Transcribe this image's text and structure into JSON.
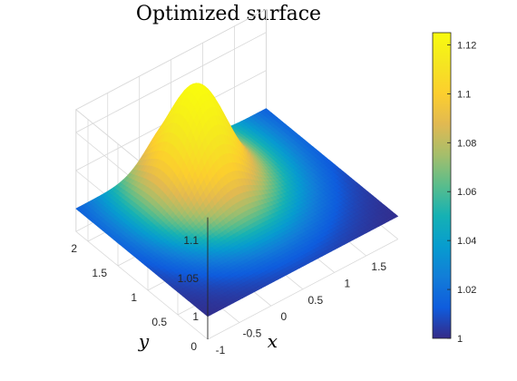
{
  "chart_data": {
    "type": "surface",
    "title": "Optimized surface",
    "xlabel": "x",
    "ylabel": "y",
    "zlabel": "",
    "xlim": [
      -1,
      2
    ],
    "ylim": [
      0,
      2.2
    ],
    "zlim": [
      0.97,
      1.13
    ],
    "x_ticks": [
      "-1",
      "-0.5",
      "0",
      "0.5",
      "1",
      "1.5"
    ],
    "x_tick_values": [
      -1,
      -0.5,
      0,
      0.5,
      1,
      1.5
    ],
    "y_ticks": [
      "0",
      "0.5",
      "1",
      "1.5",
      "2"
    ],
    "y_tick_values": [
      0,
      0.5,
      1,
      1.5,
      2
    ],
    "z_ticks": [
      "1",
      "1.05",
      "1.1"
    ],
    "z_tick_values": [
      1,
      1.05,
      1.1
    ],
    "surface": {
      "base": 1.0,
      "peak": 1.125,
      "peak_x": 0.5,
      "peak_y": 1.75,
      "spread": 0.35
    },
    "colorbar": {
      "min": 1.0,
      "max": 1.125,
      "ticks": [
        "1",
        "1.02",
        "1.04",
        "1.06",
        "1.08",
        "1.1",
        "1.12"
      ],
      "tick_values": [
        1.0,
        1.02,
        1.04,
        1.06,
        1.08,
        1.1,
        1.12
      ],
      "colormap": "parula"
    },
    "grid": true
  }
}
